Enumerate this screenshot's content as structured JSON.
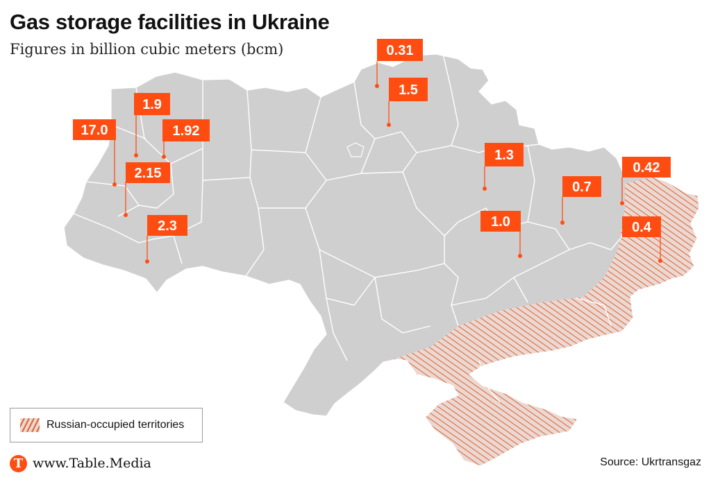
{
  "header": {
    "title": "Gas storage facilities in Ukraine",
    "subtitle": "Figures in billion cubic meters (bcm)"
  },
  "colors": {
    "land": "#cfcfcf",
    "border": "#ffffff",
    "accent": "#ff4d12",
    "occupied_hatch": "#e0602e"
  },
  "facilities": [
    {
      "label": "17.0"
    },
    {
      "label": "1.9"
    },
    {
      "label": "1.92"
    },
    {
      "label": "2.15"
    },
    {
      "label": "2.3"
    },
    {
      "label": "0.31"
    },
    {
      "label": "1.5"
    },
    {
      "label": "1.3"
    },
    {
      "label": "0.7"
    },
    {
      "label": "1.0"
    },
    {
      "label": "0.42"
    },
    {
      "label": "0.4"
    }
  ],
  "legend": {
    "label": "Russian-occupied territories",
    "icon": "hatched-swatch-icon"
  },
  "footer": {
    "logo_letter": "T",
    "url": "www.Table.Media",
    "source": "Source: Ukrtransgaz"
  }
}
